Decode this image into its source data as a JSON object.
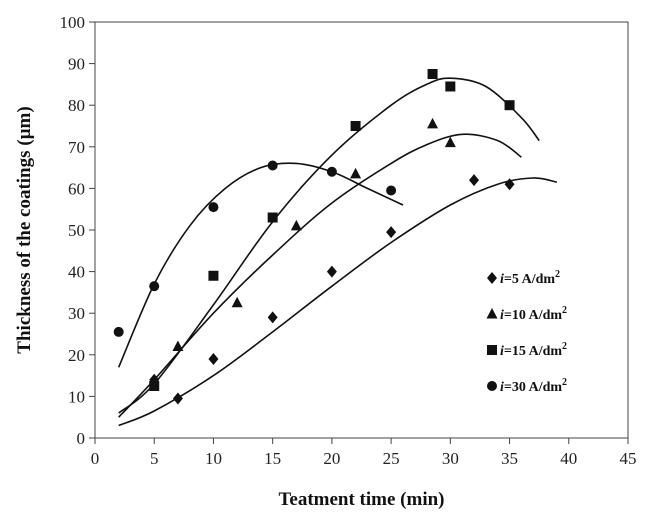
{
  "chart_data": {
    "type": "scatter",
    "title": "",
    "xlabel": "Teatment time (min)",
    "ylabel": "Thickness of the coatings (µm)",
    "xlim": [
      0,
      45
    ],
    "ylim": [
      0,
      100
    ],
    "xticks": [
      0,
      5,
      10,
      15,
      20,
      25,
      30,
      35,
      40,
      45
    ],
    "yticks": [
      0,
      10,
      20,
      30,
      40,
      50,
      60,
      70,
      80,
      90,
      100
    ],
    "grid": false,
    "legend_position": "right",
    "series": [
      {
        "name": "i=5 A/dm2",
        "label_prefix": "i",
        "label_rest": "=5 A/dm",
        "label_sup": "2",
        "marker": "diamond",
        "color": "#111111",
        "points": [
          [
            5,
            14
          ],
          [
            7,
            9.5
          ],
          [
            10,
            19
          ],
          [
            15,
            29
          ],
          [
            20,
            40
          ],
          [
            25,
            49.5
          ],
          [
            32,
            62
          ],
          [
            35,
            61
          ]
        ],
        "fit": [
          [
            2,
            3
          ],
          [
            5,
            6.5
          ],
          [
            10,
            15
          ],
          [
            15,
            25.5
          ],
          [
            20,
            36.5
          ],
          [
            25,
            47
          ],
          [
            30,
            56
          ],
          [
            34,
            61
          ],
          [
            37,
            62.5
          ],
          [
            39,
            61.5
          ]
        ]
      },
      {
        "name": "i=10 A/dm2",
        "label_prefix": "i",
        "label_rest": "=10 A/dm",
        "label_sup": "2",
        "marker": "triangle",
        "color": "#111111",
        "points": [
          [
            7,
            22
          ],
          [
            12,
            32.5
          ],
          [
            17,
            51
          ],
          [
            22,
            63.5
          ],
          [
            28.5,
            75.5
          ],
          [
            30,
            71
          ]
        ],
        "fit": [
          [
            2,
            5
          ],
          [
            5,
            14
          ],
          [
            10,
            30
          ],
          [
            15,
            44
          ],
          [
            20,
            56.5
          ],
          [
            25,
            66
          ],
          [
            28,
            70.5
          ],
          [
            31,
            73
          ],
          [
            34,
            71.5
          ],
          [
            36,
            67.5
          ]
        ]
      },
      {
        "name": "i=15 A/dm2",
        "label_prefix": "i",
        "label_rest": "=15 A/dm",
        "label_sup": "2",
        "marker": "square",
        "color": "#111111",
        "points": [
          [
            5,
            12.5
          ],
          [
            10,
            39
          ],
          [
            15,
            53
          ],
          [
            22,
            75
          ],
          [
            28.5,
            87.5
          ],
          [
            30,
            84.5
          ],
          [
            35,
            80
          ]
        ],
        "fit": [
          [
            2,
            6
          ],
          [
            5,
            13
          ],
          [
            10,
            32
          ],
          [
            15,
            52
          ],
          [
            20,
            68
          ],
          [
            25,
            80
          ],
          [
            28,
            85
          ],
          [
            30,
            86.5
          ],
          [
            33,
            84.5
          ],
          [
            36,
            77
          ],
          [
            37.5,
            71.5
          ]
        ]
      },
      {
        "name": "i=30 A/dm2",
        "label_prefix": "i",
        "label_rest": "=30 A/dm",
        "label_sup": "2",
        "marker": "circle",
        "color": "#111111",
        "points": [
          [
            2,
            25.5
          ],
          [
            5,
            36.5
          ],
          [
            10,
            55.5
          ],
          [
            15,
            65.5
          ],
          [
            20,
            64
          ],
          [
            25,
            59.5
          ]
        ],
        "fit": [
          [
            2,
            17
          ],
          [
            5,
            37
          ],
          [
            8,
            51
          ],
          [
            11,
            60
          ],
          [
            14,
            65
          ],
          [
            17,
            66
          ],
          [
            20,
            64
          ],
          [
            23,
            60
          ],
          [
            26,
            56
          ]
        ]
      }
    ]
  }
}
